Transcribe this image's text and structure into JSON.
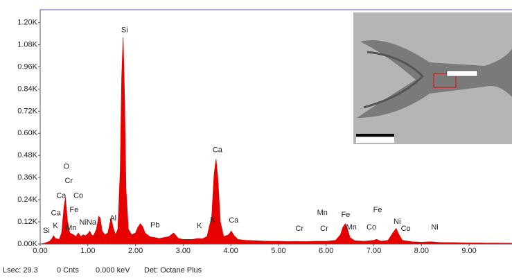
{
  "chart_data": {
    "type": "area",
    "color": "#e60000",
    "x": [
      0.0,
      0.1,
      0.15,
      0.2,
      0.25,
      0.28,
      0.32,
      0.4,
      0.45,
      0.5,
      0.53,
      0.57,
      0.62,
      0.7,
      0.75,
      0.8,
      0.85,
      0.9,
      0.95,
      1.0,
      1.04,
      1.08,
      1.12,
      1.18,
      1.23,
      1.26,
      1.3,
      1.36,
      1.42,
      1.46,
      1.49,
      1.53,
      1.58,
      1.63,
      1.68,
      1.71,
      1.74,
      1.77,
      1.8,
      1.85,
      1.92,
      2.0,
      2.05,
      2.1,
      2.15,
      2.2,
      2.3,
      2.4,
      2.5,
      2.6,
      2.7,
      2.8,
      2.85,
      2.9,
      3.0,
      3.1,
      3.2,
      3.3,
      3.4,
      3.5,
      3.6,
      3.65,
      3.69,
      3.73,
      3.78,
      3.85,
      3.95,
      4.01,
      4.07,
      4.15,
      4.3,
      4.5,
      4.8,
      5.0,
      5.2,
      5.4,
      5.6,
      5.8,
      6.0,
      6.2,
      6.3,
      6.35,
      6.4,
      6.45,
      6.5,
      6.6,
      6.8,
      7.0,
      7.06,
      7.15,
      7.3,
      7.4,
      7.47,
      7.52,
      7.6,
      7.8,
      8.0,
      8.2,
      8.4,
      8.6,
      8.8,
      9.0,
      9.2,
      9.4,
      9.6,
      9.9
    ],
    "values": [
      0,
      5,
      10,
      15,
      30,
      45,
      30,
      25,
      60,
      200,
      250,
      130,
      60,
      50,
      40,
      60,
      40,
      50,
      45,
      55,
      70,
      50,
      45,
      80,
      150,
      140,
      70,
      50,
      60,
      110,
      140,
      90,
      50,
      80,
      400,
      900,
      1120,
      800,
      300,
      80,
      50,
      60,
      90,
      110,
      95,
      60,
      40,
      35,
      30,
      35,
      40,
      60,
      45,
      30,
      25,
      25,
      25,
      30,
      28,
      40,
      150,
      380,
      460,
      350,
      120,
      40,
      50,
      70,
      45,
      25,
      20,
      18,
      15,
      15,
      13,
      14,
      13,
      15,
      15,
      20,
      50,
      90,
      110,
      80,
      35,
      18,
      15,
      20,
      25,
      15,
      20,
      60,
      85,
      55,
      20,
      12,
      10,
      12,
      8,
      8,
      7,
      6,
      6,
      5,
      5,
      4
    ],
    "xlim": [
      0,
      9.9
    ],
    "ylim": [
      0,
      1270
    ],
    "xticks": [
      {
        "value": 0,
        "label": "0.00"
      },
      {
        "value": 1,
        "label": "1.00"
      },
      {
        "value": 2,
        "label": "2.00"
      },
      {
        "value": 3,
        "label": "3.00"
      },
      {
        "value": 4,
        "label": "4.00"
      },
      {
        "value": 5,
        "label": "5.00"
      },
      {
        "value": 6,
        "label": "6.00"
      },
      {
        "value": 7,
        "label": "7.00"
      },
      {
        "value": 8,
        "label": "8.00"
      },
      {
        "value": 9,
        "label": "9.00"
      }
    ],
    "yticks": [
      {
        "value": 0,
        "label": "0.00K"
      },
      {
        "value": 120,
        "label": "0.12K"
      },
      {
        "value": 240,
        "label": "0.24K"
      },
      {
        "value": 360,
        "label": "0.36K"
      },
      {
        "value": 480,
        "label": "0.48K"
      },
      {
        "value": 600,
        "label": "0.60K"
      },
      {
        "value": 720,
        "label": "0.72K"
      },
      {
        "value": 840,
        "label": "0.84K"
      },
      {
        "value": 960,
        "label": "0.96K"
      },
      {
        "value": 1080,
        "label": "1.08K"
      },
      {
        "value": 1200,
        "label": "1.20K"
      }
    ],
    "annotations": [
      {
        "text": "Si",
        "x": 1.77,
        "y": 1159
      },
      {
        "text": "Ca",
        "x": 3.72,
        "y": 508
      },
      {
        "text": "O",
        "x": 0.55,
        "y": 418
      },
      {
        "text": "Cr",
        "x": 0.6,
        "y": 342
      },
      {
        "text": "Co",
        "x": 0.8,
        "y": 260
      },
      {
        "text": "Ca",
        "x": 0.44,
        "y": 260
      },
      {
        "text": "Fe",
        "x": 0.71,
        "y": 184
      },
      {
        "text": "Ca",
        "x": 0.33,
        "y": 166
      },
      {
        "text": "K",
        "x": 0.32,
        "y": 98
      },
      {
        "text": "Mn",
        "x": 0.65,
        "y": 87
      },
      {
        "text": "Si",
        "x": 0.13,
        "y": 71
      },
      {
        "text": "NiNa",
        "x": 1.0,
        "y": 117
      },
      {
        "text": "Al",
        "x": 1.53,
        "y": 139
      },
      {
        "text": "Pb",
        "x": 2.41,
        "y": 102
      },
      {
        "text": "K",
        "x": 3.34,
        "y": 98
      },
      {
        "text": "K",
        "x": 3.62,
        "y": 130
      },
      {
        "text": "Ca",
        "x": 4.06,
        "y": 128
      },
      {
        "text": "Cr",
        "x": 5.44,
        "y": 83
      },
      {
        "text": "Mn",
        "x": 5.92,
        "y": 169
      },
      {
        "text": "Cr",
        "x": 5.96,
        "y": 83
      },
      {
        "text": "Fe",
        "x": 6.41,
        "y": 158
      },
      {
        "text": "Mn",
        "x": 6.53,
        "y": 90
      },
      {
        "text": "Fe",
        "x": 7.08,
        "y": 184
      },
      {
        "text": "Co",
        "x": 6.95,
        "y": 90
      },
      {
        "text": "Ni",
        "x": 7.49,
        "y": 120
      },
      {
        "text": "Co",
        "x": 7.67,
        "y": 83
      },
      {
        "text": "Ni",
        "x": 8.28,
        "y": 90
      }
    ]
  },
  "status_bar": [
    "Lsec: 29.3",
    "0 Cnts",
    "0.000 keV",
    "Det: Octane Plus"
  ]
}
